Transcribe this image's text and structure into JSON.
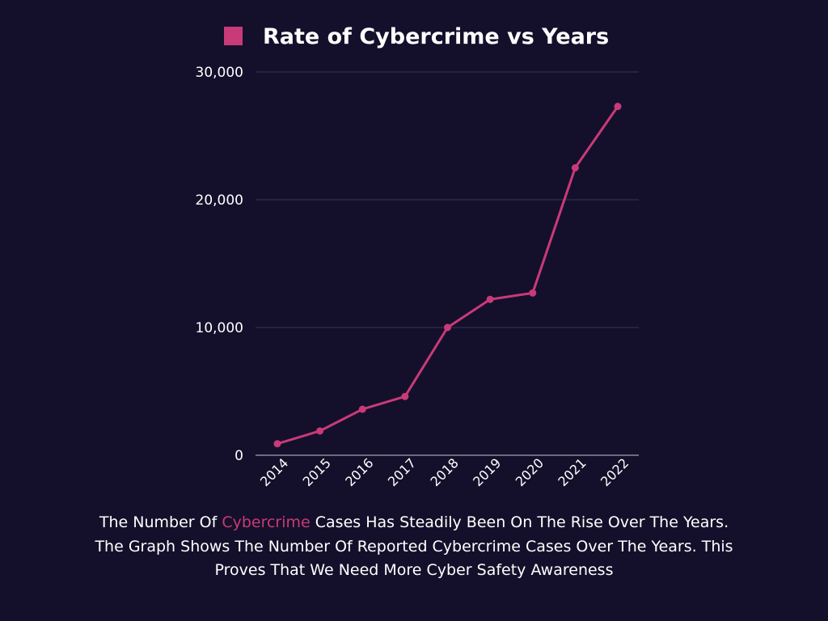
{
  "chart_data": {
    "type": "line",
    "title": "Rate of Cybercrime vs Years",
    "categories": [
      "2014",
      "2015",
      "2016",
      "2017",
      "2018",
      "2019",
      "2020",
      "2021",
      "2022"
    ],
    "series": [
      {
        "name": "Rate of Cybercrime vs Years",
        "values": [
          900,
          1900,
          3600,
          4600,
          10000,
          12200,
          12700,
          22500,
          27300
        ]
      }
    ],
    "ylim": [
      0,
      30000
    ],
    "yticks": [
      "0",
      "10,000",
      "20,000",
      "30,000"
    ],
    "ytick_values": [
      0,
      10000,
      20000,
      30000
    ],
    "grid": true,
    "legend": "top",
    "colors": {
      "series": "#c93a78",
      "background": "#14102b",
      "grid": "#3a3651",
      "text": "#ffffff"
    }
  },
  "caption": {
    "part1": "The Number Of ",
    "highlight": "Cybercrime",
    "part2": " Cases Has Steadily Been On The Rise Over The Years.  The Graph Shows The Number Of Reported Cybercrime Cases Over The Years. This Proves That We Need More Cyber Safety Awareness"
  }
}
